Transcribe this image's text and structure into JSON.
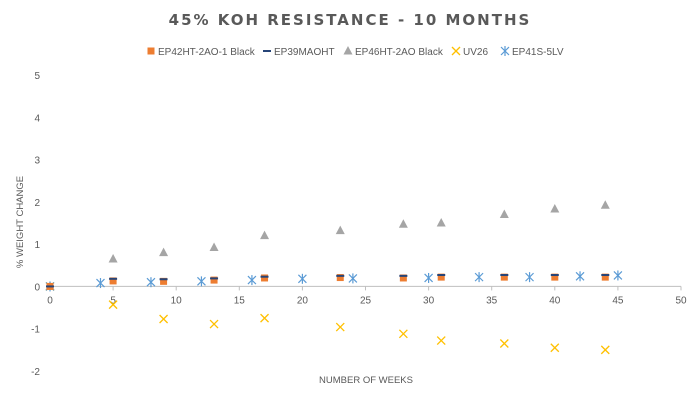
{
  "chart_data": {
    "type": "scatter",
    "title": "45% KOH RESISTANCE - 10 MONTHS",
    "xlabel": "NUMBER OF WEEKS",
    "ylabel": "% WEIGHT CHANGE",
    "xlim": [
      0,
      50
    ],
    "ylim": [
      -2,
      5
    ],
    "xticks": [
      0,
      5,
      10,
      15,
      20,
      25,
      30,
      35,
      40,
      45,
      50
    ],
    "yticks": [
      -2,
      -1,
      0,
      1,
      2,
      3,
      4,
      5
    ],
    "grid": false,
    "legend_position": "top",
    "series": [
      {
        "name": "EP42HT-2AO-1 Black",
        "marker": "square",
        "color": "#ED7D31",
        "x": [
          0,
          5,
          9,
          13,
          17,
          23,
          28,
          31,
          36,
          40,
          44
        ],
        "y": [
          0,
          0.13,
          0.12,
          0.15,
          0.2,
          0.21,
          0.2,
          0.22,
          0.22,
          0.22,
          0.22
        ]
      },
      {
        "name": "EP39MAOHT",
        "marker": "dash",
        "color": "#264478",
        "x": [
          0,
          5,
          9,
          13,
          17,
          23,
          28,
          31,
          36,
          40,
          44
        ],
        "y": [
          0,
          0.18,
          0.17,
          0.19,
          0.23,
          0.25,
          0.25,
          0.27,
          0.27,
          0.27,
          0.27
        ]
      },
      {
        "name": "EP46HT-2AO Black",
        "marker": "triangle",
        "color": "#A5A5A5",
        "x": [
          0,
          5,
          9,
          13,
          17,
          23,
          28,
          31,
          36,
          40,
          44
        ],
        "y": [
          0,
          0.65,
          0.8,
          0.92,
          1.2,
          1.32,
          1.47,
          1.5,
          1.7,
          1.83,
          1.92
        ]
      },
      {
        "name": "UV26",
        "marker": "x",
        "color": "#FFC000",
        "x": [
          0,
          5,
          9,
          13,
          17,
          23,
          28,
          31,
          36,
          40,
          44
        ],
        "y": [
          0,
          -0.43,
          -0.77,
          -0.89,
          -0.75,
          -0.96,
          -1.12,
          -1.28,
          -1.35,
          -1.45,
          -1.5
        ]
      },
      {
        "name": "EP41S-5LV",
        "marker": "asterisk",
        "color": "#5B9BD5",
        "x": [
          0,
          4,
          8,
          12,
          16,
          20,
          24,
          30,
          34,
          38,
          42,
          45
        ],
        "y": [
          0,
          0.08,
          0.1,
          0.12,
          0.15,
          0.18,
          0.19,
          0.2,
          0.22,
          0.22,
          0.24,
          0.26
        ]
      }
    ]
  }
}
